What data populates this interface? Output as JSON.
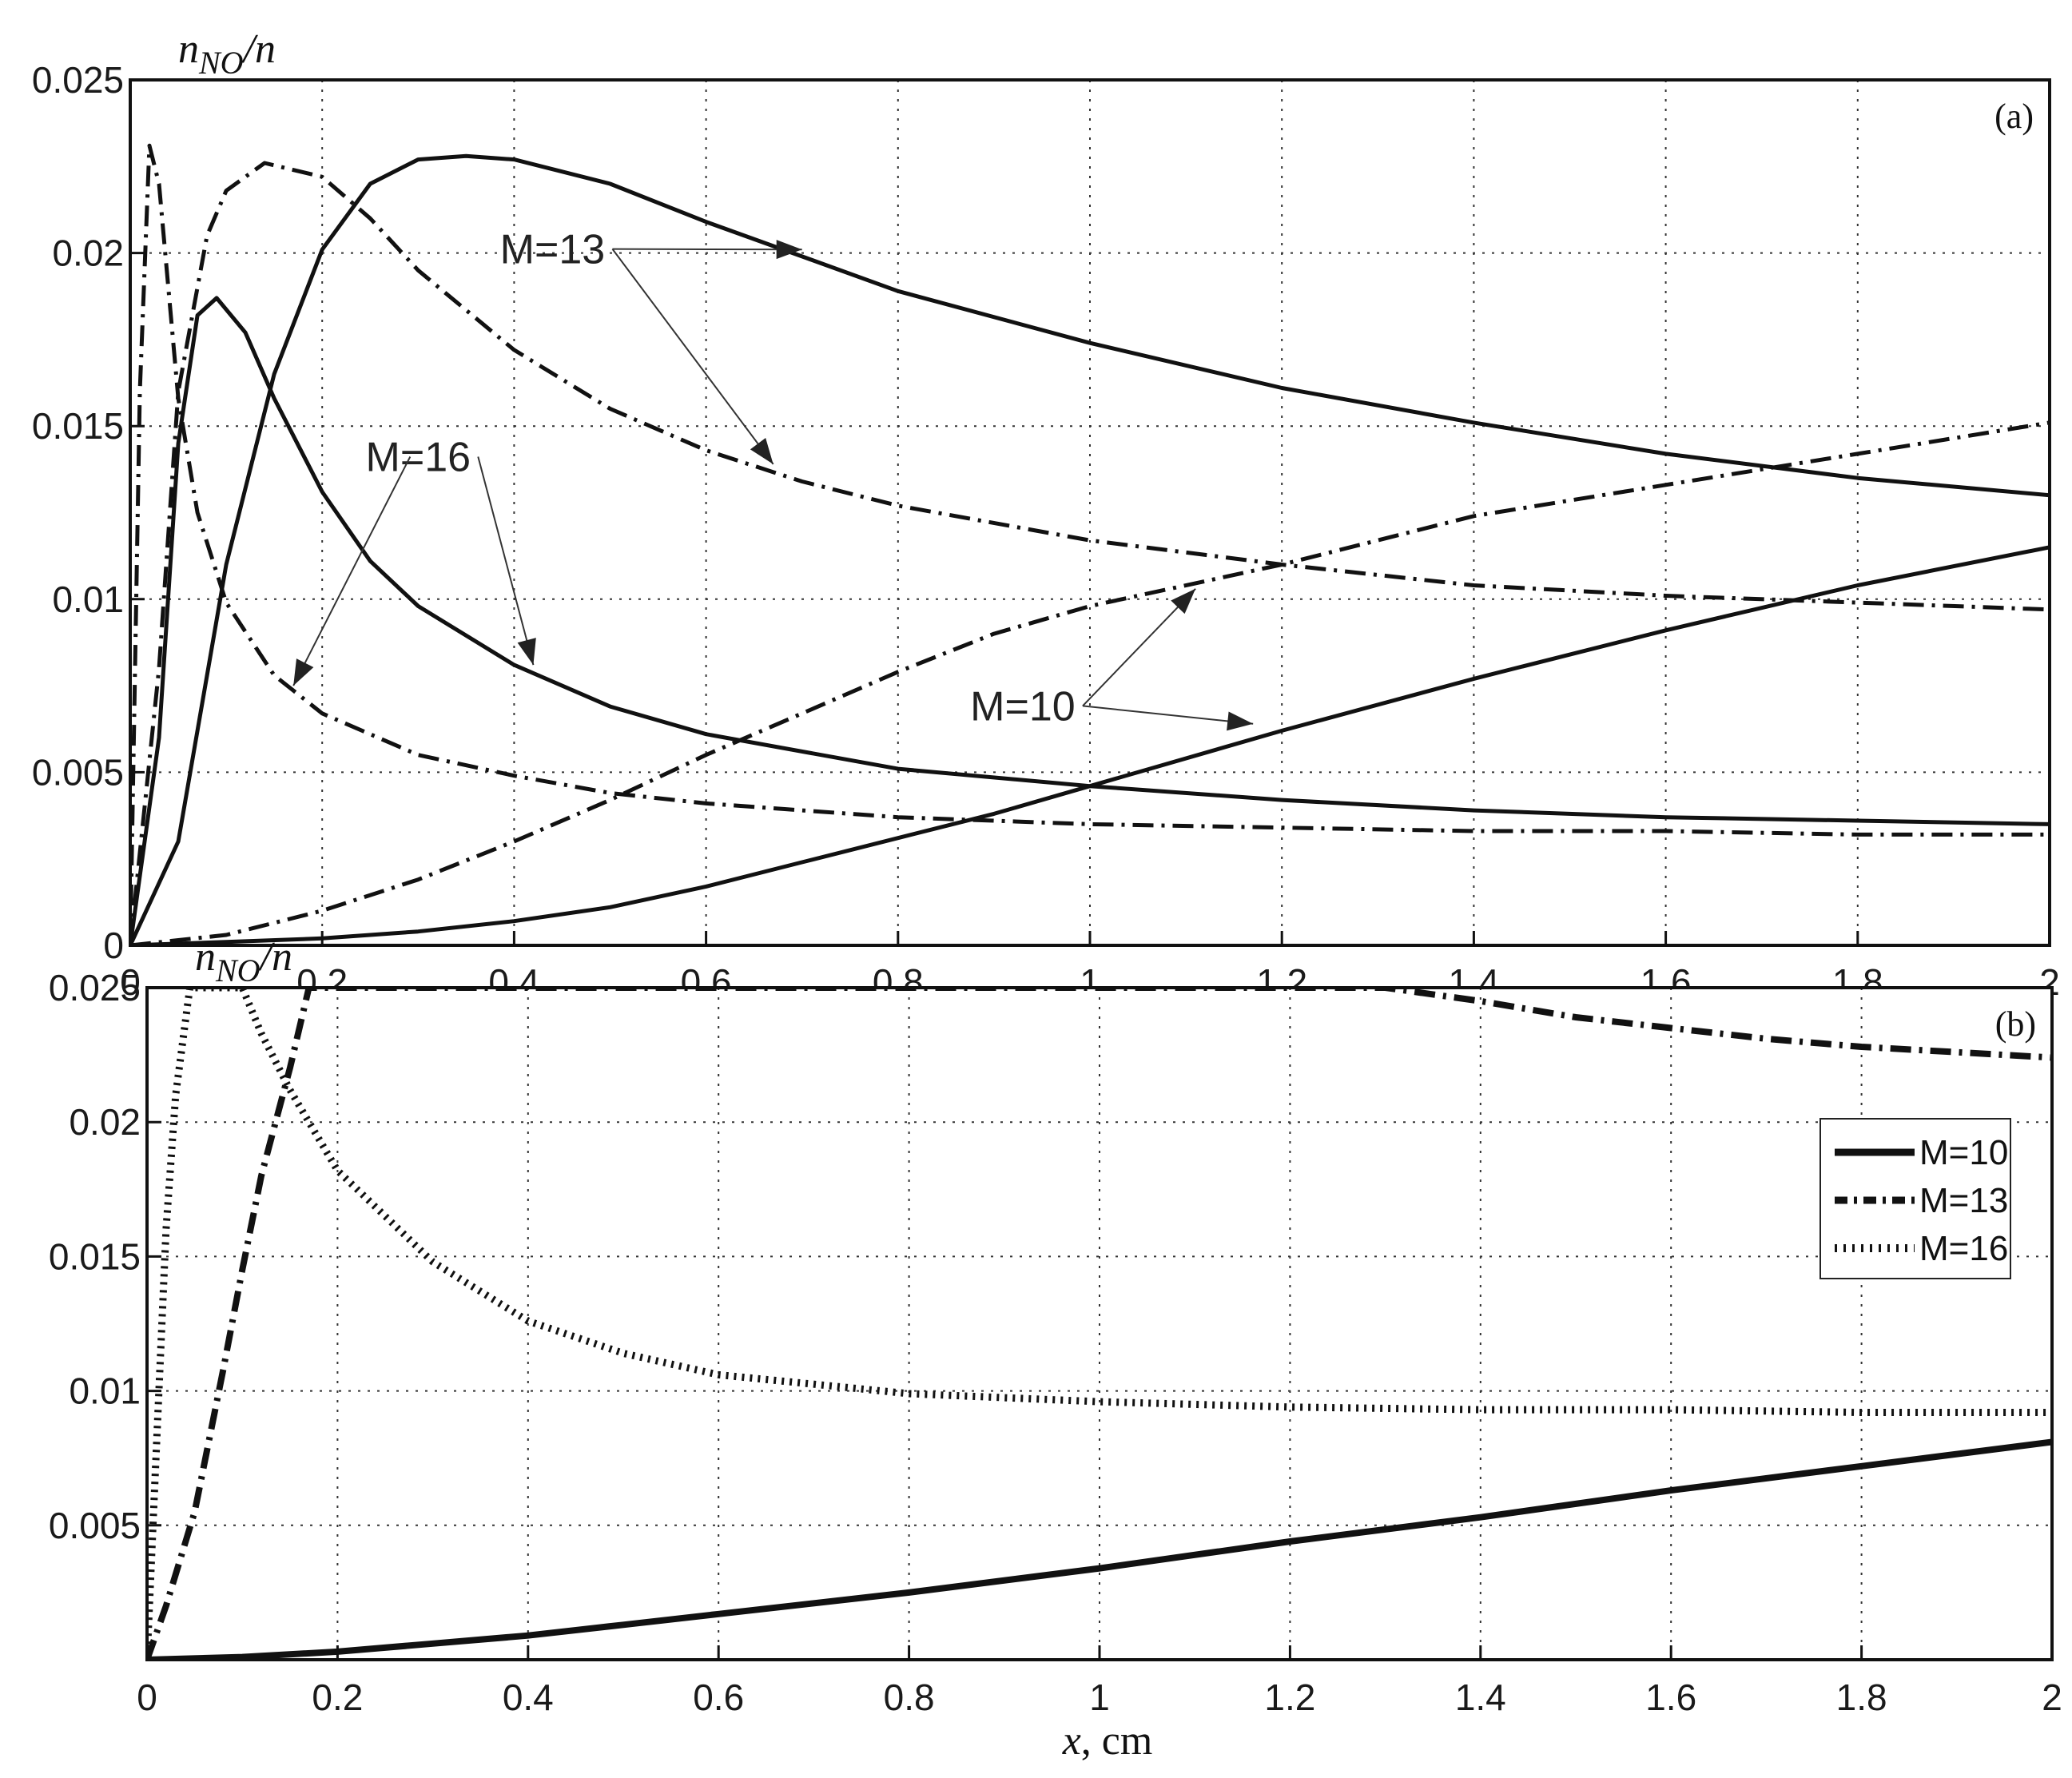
{
  "figure": {
    "panels": [
      "(a)",
      "(b)"
    ]
  },
  "chart_data": [
    {
      "panel": "(a)",
      "type": "line",
      "title": "",
      "xlabel": "x, cm",
      "ylabel": "n_NO/n",
      "xlim": [
        0,
        2
      ],
      "ylim": [
        0,
        0.025
      ],
      "xticks": [
        "0",
        "0.2",
        "0.4",
        "0.6",
        "0.8",
        "1",
        "1.2",
        "1.4",
        "1.6",
        "1.8",
        "2"
      ],
      "yticks": [
        "0",
        "0.005",
        "0.01",
        "0.015",
        "0.02",
        "0.025"
      ],
      "grid": true,
      "tag": "(a)",
      "annotations": [
        {
          "text": "M=13",
          "x": 0.44,
          "y": 0.0197,
          "arrows_to": [
            [
              0.7,
              0.0201
            ],
            [
              0.67,
              0.0139
            ]
          ]
        },
        {
          "text": "M=16",
          "x": 0.3,
          "y": 0.0137,
          "arrows_to": [
            [
              0.17,
              0.0075
            ],
            [
              0.42,
              0.0081
            ]
          ]
        },
        {
          "text": "M=10",
          "x": 0.93,
          "y": 0.0065,
          "arrows_to": [
            [
              1.11,
              0.0103
            ],
            [
              1.17,
              0.0064
            ]
          ]
        }
      ],
      "series": [
        {
          "name": "M=10 (solid, rising)",
          "style": "solid",
          "x": [
            0,
            0.1,
            0.2,
            0.3,
            0.4,
            0.5,
            0.6,
            0.7,
            0.8,
            0.9,
            1.0,
            1.2,
            1.4,
            1.6,
            1.8,
            2.0
          ],
          "y": [
            0,
            0.0001,
            0.0002,
            0.0004,
            0.0007,
            0.0011,
            0.0017,
            0.0024,
            0.0031,
            0.0038,
            0.0046,
            0.0062,
            0.0077,
            0.0091,
            0.0104,
            0.0115
          ]
        },
        {
          "name": "M=10 (dash-dot, rising)",
          "style": "dashdot",
          "x": [
            0,
            0.1,
            0.2,
            0.3,
            0.4,
            0.5,
            0.6,
            0.7,
            0.8,
            0.9,
            1.0,
            1.2,
            1.4,
            1.6,
            1.8,
            2.0
          ],
          "y": [
            0,
            0.0003,
            0.001,
            0.0019,
            0.003,
            0.0042,
            0.0055,
            0.0067,
            0.0079,
            0.009,
            0.0098,
            0.011,
            0.0124,
            0.0133,
            0.0142,
            0.0151
          ]
        },
        {
          "name": "M=13 (solid)",
          "style": "solid",
          "x": [
            0,
            0.05,
            0.1,
            0.15,
            0.2,
            0.25,
            0.3,
            0.35,
            0.4,
            0.5,
            0.6,
            0.7,
            0.8,
            1.0,
            1.2,
            1.4,
            1.6,
            1.8,
            2.0
          ],
          "y": [
            0,
            0.003,
            0.011,
            0.0165,
            0.0201,
            0.022,
            0.0227,
            0.0228,
            0.0227,
            0.022,
            0.0209,
            0.0199,
            0.0189,
            0.0174,
            0.0161,
            0.0151,
            0.0142,
            0.0135,
            0.013
          ]
        },
        {
          "name": "M=13 (dash-dot)",
          "style": "dashdot",
          "x": [
            0,
            0.03,
            0.05,
            0.08,
            0.1,
            0.14,
            0.2,
            0.25,
            0.3,
            0.4,
            0.5,
            0.6,
            0.7,
            0.8,
            1.0,
            1.2,
            1.4,
            1.6,
            1.8,
            2.0
          ],
          "y": [
            0,
            0.008,
            0.016,
            0.0205,
            0.0218,
            0.0226,
            0.0222,
            0.021,
            0.0195,
            0.0172,
            0.0155,
            0.0143,
            0.0134,
            0.0127,
            0.0117,
            0.011,
            0.0104,
            0.0101,
            0.0099,
            0.0097
          ]
        },
        {
          "name": "M=16 (solid)",
          "style": "solid",
          "x": [
            0,
            0.03,
            0.05,
            0.07,
            0.09,
            0.12,
            0.15,
            0.2,
            0.25,
            0.3,
            0.4,
            0.5,
            0.6,
            0.8,
            1.0,
            1.2,
            1.4,
            1.6,
            1.8,
            2.0
          ],
          "y": [
            0,
            0.006,
            0.0145,
            0.0182,
            0.0187,
            0.0177,
            0.0158,
            0.0131,
            0.0111,
            0.0098,
            0.0081,
            0.0069,
            0.0061,
            0.0051,
            0.0046,
            0.0042,
            0.0039,
            0.0037,
            0.0036,
            0.0035
          ]
        },
        {
          "name": "M=16 (dash-dot)",
          "style": "dashdot",
          "x": [
            0,
            0.01,
            0.02,
            0.03,
            0.05,
            0.07,
            0.1,
            0.15,
            0.2,
            0.3,
            0.4,
            0.5,
            0.6,
            0.8,
            1.0,
            1.2,
            1.4,
            1.6,
            1.8,
            2.0
          ],
          "y": [
            0,
            0.016,
            0.0231,
            0.022,
            0.0158,
            0.0125,
            0.0099,
            0.0078,
            0.0067,
            0.0055,
            0.0049,
            0.0044,
            0.0041,
            0.0037,
            0.0035,
            0.0034,
            0.0033,
            0.0033,
            0.0032,
            0.0032
          ]
        }
      ]
    },
    {
      "panel": "(b)",
      "type": "line",
      "title": "",
      "xlabel": "x, cm",
      "ylabel": "n_NO/n",
      "xlim": [
        0,
        2
      ],
      "ylim": [
        0,
        0.025
      ],
      "xticks": [
        "0",
        "0.2",
        "0.4",
        "0.6",
        "0.8",
        "1",
        "1.2",
        "1.4",
        "1.6",
        "1.8",
        "2"
      ],
      "yticks": [
        "",
        "0.005",
        "0.01",
        "0.015",
        "0.02",
        "0.025"
      ],
      "grid": true,
      "tag": "(b)",
      "legend": {
        "position": "right",
        "entries": [
          "M=10",
          "M=13",
          "M=16"
        ]
      },
      "series": [
        {
          "name": "M=10",
          "style": "solid",
          "x": [
            0,
            0.1,
            0.2,
            0.3,
            0.4,
            0.5,
            0.6,
            0.8,
            1.0,
            1.2,
            1.4,
            1.6,
            1.8,
            2.0
          ],
          "y": [
            0,
            0.0001,
            0.0003,
            0.0006,
            0.0009,
            0.0013,
            0.0017,
            0.0025,
            0.0034,
            0.0044,
            0.0053,
            0.0063,
            0.0072,
            0.0081
          ]
        },
        {
          "name": "M=13",
          "style": "dashdot",
          "x": [
            0,
            0.02,
            0.05,
            0.08,
            0.1,
            0.12,
            0.15,
            0.17,
            1.3,
            1.4,
            1.5,
            1.6,
            1.7,
            1.8,
            1.9,
            2.0
          ],
          "y": [
            0,
            0.002,
            0.0055,
            0.0108,
            0.0145,
            0.018,
            0.022,
            0.025,
            0.025,
            0.0245,
            0.0239,
            0.0235,
            0.0231,
            0.0228,
            0.0226,
            0.0224
          ]
        },
        {
          "name": "M=16",
          "style": "dotted",
          "x": [
            0,
            0.01,
            0.02,
            0.03,
            0.045,
            0.1,
            0.12,
            0.15,
            0.2,
            0.3,
            0.4,
            0.5,
            0.6,
            0.8,
            1.0,
            1.2,
            1.4,
            1.6,
            1.8,
            2.0
          ],
          "y": [
            0,
            0.008,
            0.016,
            0.021,
            0.025,
            0.025,
            0.0233,
            0.0212,
            0.0182,
            0.0148,
            0.0126,
            0.0114,
            0.0106,
            0.0099,
            0.0096,
            0.0094,
            0.0093,
            0.0093,
            0.0092,
            0.0092
          ]
        }
      ]
    }
  ]
}
